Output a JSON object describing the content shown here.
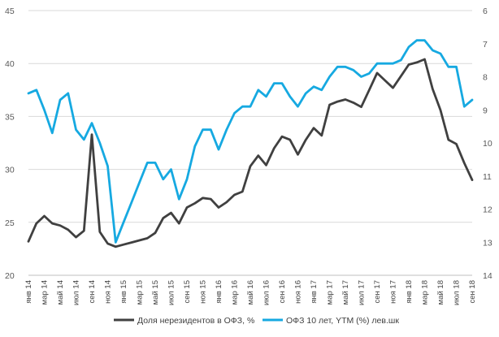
{
  "chart_data": {
    "type": "line",
    "grid": "horizontal",
    "legend_position": "bottom",
    "y_left": {
      "range": [
        20,
        45
      ],
      "ticks": [
        "20",
        "25",
        "30",
        "35",
        "40",
        "45"
      ]
    },
    "y_right": {
      "range": [
        14,
        6
      ],
      "reversed": true,
      "ticks": [
        "6",
        "7",
        "8",
        "9",
        "10",
        "11",
        "12",
        "13",
        "14"
      ]
    },
    "x": [
      "янв 14",
      "фев 14",
      "мар 14",
      "апр 14",
      "май 14",
      "июн 14",
      "июл 14",
      "авг 14",
      "сен 14",
      "окт 14",
      "ноя 14",
      "дек 14",
      "янв 15",
      "фев 15",
      "мар 15",
      "апр 15",
      "май 15",
      "июн 15",
      "июл 15",
      "авг 15",
      "сен 15",
      "окт 15",
      "ноя 15",
      "дек 15",
      "янв 16",
      "фев 16",
      "мар 16",
      "апр 16",
      "май 16",
      "июн 16",
      "июл 16",
      "авг 16",
      "сен 16",
      "окт 16",
      "ноя 16",
      "дек 16",
      "янв 17",
      "фев 17",
      "мар 17",
      "апр 17",
      "май 17",
      "июн 17",
      "июл 17",
      "авг 17",
      "сен 17",
      "окт 17",
      "ноя 17",
      "дек 17",
      "янв 18",
      "фев 18",
      "мар 18",
      "апр 18",
      "май 18",
      "июн 18",
      "июл 18",
      "авг 18",
      "сен 18"
    ],
    "x_tick_labels": [
      "янв 14",
      "мар 14",
      "май 14",
      "июл 14",
      "сен 14",
      "ноя 14",
      "янв 15",
      "мар 15",
      "май 15",
      "июл 15",
      "сен 15",
      "ноя 15",
      "янв 16",
      "мар 16",
      "май 16",
      "июл 16",
      "сен 16",
      "ноя 16",
      "янв 17",
      "мар 17",
      "май 17",
      "июл 17",
      "сен 17",
      "ноя 17",
      "янв 18",
      "мар 18",
      "май 18",
      "июл 18",
      "сен 18"
    ],
    "series": [
      {
        "name": "Доля нерезидентов в ОФЗ, %",
        "axis": "left",
        "color": "#404040",
        "values": [
          23.2,
          24.9,
          25.6,
          24.9,
          24.7,
          24.3,
          23.6,
          24.2,
          33.3,
          24.1,
          23.0,
          22.7,
          22.9,
          23.1,
          23.3,
          23.5,
          24.0,
          25.4,
          25.9,
          24.9,
          26.4,
          26.8,
          27.3,
          27.2,
          26.4,
          26.9,
          27.6,
          27.9,
          30.3,
          31.3,
          30.4,
          32.0,
          33.1,
          32.8,
          31.4,
          32.8,
          33.9,
          33.2,
          36.1,
          36.4,
          36.6,
          36.3,
          35.9,
          37.5,
          39.1,
          38.4,
          37.7,
          38.8,
          39.9,
          40.1,
          40.4,
          37.6,
          35.6,
          32.8,
          32.4,
          30.6,
          29.0
        ]
      },
      {
        "name": "ОФЗ 10 лет, YTM (%) лев.шк",
        "axis": "right",
        "color": "#16a9e1",
        "values": [
          8.5,
          8.4,
          9.0,
          9.7,
          8.7,
          8.5,
          9.6,
          9.9,
          9.4,
          10.0,
          10.7,
          13.0,
          12.4,
          11.8,
          11.2,
          10.6,
          10.6,
          11.1,
          10.8,
          11.7,
          11.1,
          10.1,
          9.6,
          9.6,
          10.2,
          9.6,
          9.1,
          8.9,
          8.9,
          8.4,
          8.6,
          8.2,
          8.2,
          8.6,
          8.9,
          8.5,
          8.3,
          8.4,
          8.0,
          7.7,
          7.7,
          7.8,
          8.0,
          7.9,
          7.6,
          7.6,
          7.6,
          7.5,
          7.1,
          6.9,
          6.9,
          7.2,
          7.3,
          7.7,
          7.7,
          8.9,
          8.7
        ]
      }
    ]
  }
}
